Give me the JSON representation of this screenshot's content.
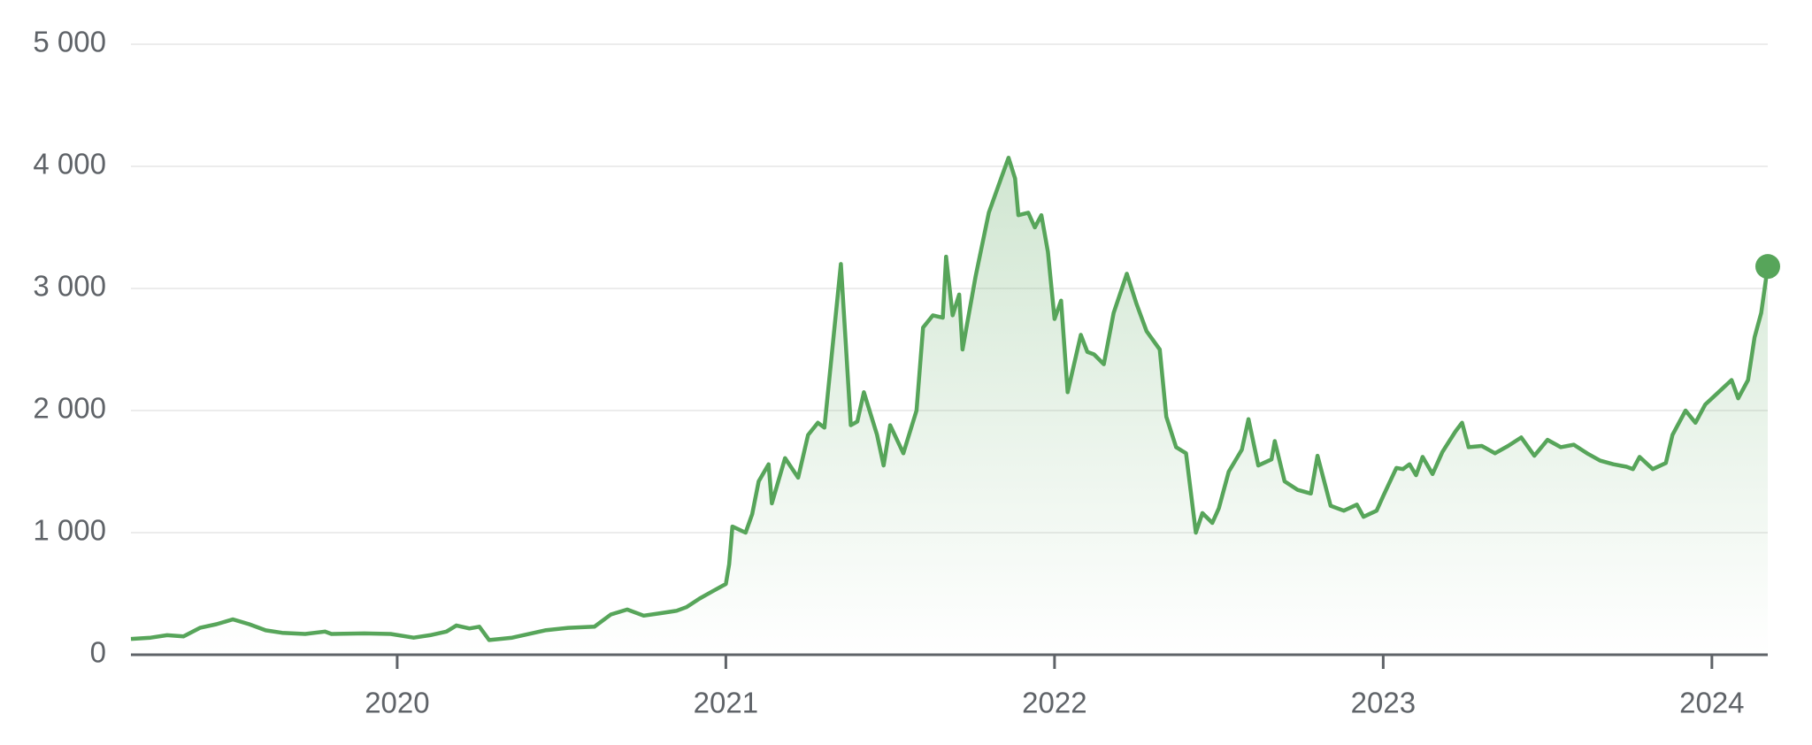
{
  "chart_data": {
    "type": "line",
    "color": "#57a55a",
    "grid": true,
    "xlim": [
      2019.19,
      2024.17
    ],
    "xticks": [
      2020,
      2021,
      2022,
      2023,
      2024
    ],
    "ylim": [
      0,
      5000
    ],
    "yticks": [
      0,
      {
        "value": 1000,
        "label": "1 000"
      },
      {
        "value": 2000,
        "label": "2 000"
      },
      {
        "value": 3000,
        "label": "3 000"
      },
      {
        "value": 4000,
        "label": "4 000"
      },
      {
        "value": 5000,
        "label": "5 000"
      }
    ],
    "x": [
      2019.19,
      2019.25,
      2019.3,
      2019.35,
      2019.4,
      2019.45,
      2019.5,
      2019.55,
      2019.6,
      2019.65,
      2019.72,
      2019.78,
      2019.8,
      2019.9,
      2019.98,
      2020.05,
      2020.1,
      2020.15,
      2020.18,
      2020.22,
      2020.25,
      2020.28,
      2020.35,
      2020.45,
      2020.52,
      2020.6,
      2020.65,
      2020.7,
      2020.75,
      2020.8,
      2020.85,
      2020.88,
      2020.92,
      2020.96,
      2021.0,
      2021.01,
      2021.02,
      2021.06,
      2021.08,
      2021.1,
      2021.13,
      2021.14,
      2021.18,
      2021.22,
      2021.25,
      2021.28,
      2021.3,
      2021.35,
      2021.38,
      2021.4,
      2021.42,
      2021.46,
      2021.48,
      2021.5,
      2021.54,
      2021.58,
      2021.6,
      2021.63,
      2021.66,
      2021.67,
      2021.69,
      2021.71,
      2021.72,
      2021.76,
      2021.8,
      2021.84,
      2021.86,
      2021.88,
      2021.89,
      2021.92,
      2021.94,
      2021.96,
      2021.98,
      2022.0,
      2022.02,
      2022.04,
      2022.08,
      2022.1,
      2022.12,
      2022.15,
      2022.18,
      2022.22,
      2022.25,
      2022.28,
      2022.32,
      2022.34,
      2022.37,
      2022.4,
      2022.43,
      2022.45,
      2022.48,
      2022.5,
      2022.53,
      2022.57,
      2022.59,
      2022.62,
      2022.66,
      2022.67,
      2022.7,
      2022.74,
      2022.78,
      2022.8,
      2022.84,
      2022.88,
      2022.92,
      2022.94,
      2022.98,
      2023.0,
      2023.04,
      2023.06,
      2023.08,
      2023.1,
      2023.12,
      2023.15,
      2023.18,
      2023.22,
      2023.24,
      2023.26,
      2023.3,
      2023.34,
      2023.38,
      2023.42,
      2023.46,
      2023.5,
      2023.54,
      2023.58,
      2023.62,
      2023.66,
      2023.7,
      2023.74,
      2023.76,
      2023.78,
      2023.82,
      2023.86,
      2023.88,
      2023.92,
      2023.95,
      2023.98,
      2024.02,
      2024.06,
      2024.08,
      2024.11,
      2024.13,
      2024.15,
      2024.17
    ],
    "values": [
      130,
      140,
      160,
      150,
      220,
      250,
      290,
      250,
      200,
      180,
      170,
      190,
      170,
      175,
      170,
      140,
      160,
      190,
      240,
      215,
      230,
      120,
      140,
      200,
      220,
      230,
      330,
      370,
      320,
      340,
      360,
      390,
      460,
      520,
      580,
      740,
      1050,
      1000,
      1150,
      1420,
      1560,
      1240,
      1610,
      1450,
      1800,
      1900,
      1860,
      3200,
      1880,
      1910,
      2150,
      1800,
      1550,
      1880,
      1650,
      2000,
      2680,
      2780,
      2760,
      3260,
      2780,
      2950,
      2500,
      3100,
      3620,
      3920,
      4070,
      3900,
      3600,
      3620,
      3500,
      3600,
      3300,
      2750,
      2900,
      2150,
      2620,
      2480,
      2460,
      2380,
      2800,
      3120,
      2870,
      2650,
      2500,
      1950,
      1700,
      1650,
      1000,
      1160,
      1080,
      1200,
      1500,
      1680,
      1930,
      1550,
      1600,
      1750,
      1420,
      1350,
      1320,
      1630,
      1220,
      1180,
      1230,
      1130,
      1180,
      1300,
      1530,
      1520,
      1560,
      1470,
      1620,
      1480,
      1660,
      1830,
      1900,
      1700,
      1710,
      1650,
      1710,
      1780,
      1630,
      1760,
      1700,
      1720,
      1650,
      1590,
      1560,
      1540,
      1520,
      1620,
      1520,
      1570,
      1800,
      2000,
      1900,
      2050,
      2150,
      2250,
      2100,
      2250,
      2600,
      2800,
      3180
    ]
  }
}
